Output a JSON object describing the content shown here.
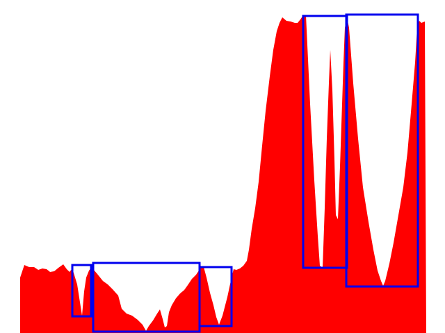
{
  "scene": {
    "background_color": "#ffffff",
    "terrain_color": "#ff0000",
    "box_color": "#0000ee"
  }
}
